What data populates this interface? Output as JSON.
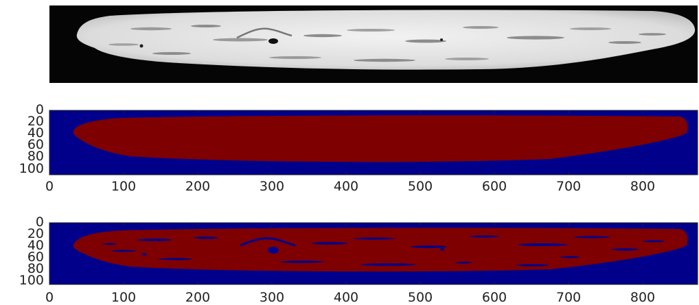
{
  "figure": {
    "description_type": "image segmentation comparison",
    "background": "#ffffff",
    "axis_tick_color": "#222222",
    "mask_background_color": "#00008b",
    "mask_foreground_color": "#7f0000"
  },
  "photo_panel": {
    "content": "grayscale micrograph of elongated grain cross-section",
    "background_color": "#050505",
    "grain_color": "#e6e6e6",
    "defect_color": "#8c8c8c"
  },
  "mask_panel_1": {
    "content": "smooth binary segmentation mask",
    "x_ticks": [
      "0",
      "100",
      "200",
      "300",
      "400",
      "500",
      "600",
      "700",
      "800"
    ],
    "y_ticks": [
      "0",
      "20",
      "40",
      "60",
      "80",
      "100"
    ]
  },
  "mask_panel_2": {
    "content": "noisy binary segmentation mask with holes",
    "x_ticks": [
      "0",
      "100",
      "200",
      "300",
      "400",
      "500",
      "600",
      "700",
      "800"
    ],
    "y_ticks": [
      "0",
      "20",
      "40",
      "60",
      "80",
      "100"
    ]
  }
}
